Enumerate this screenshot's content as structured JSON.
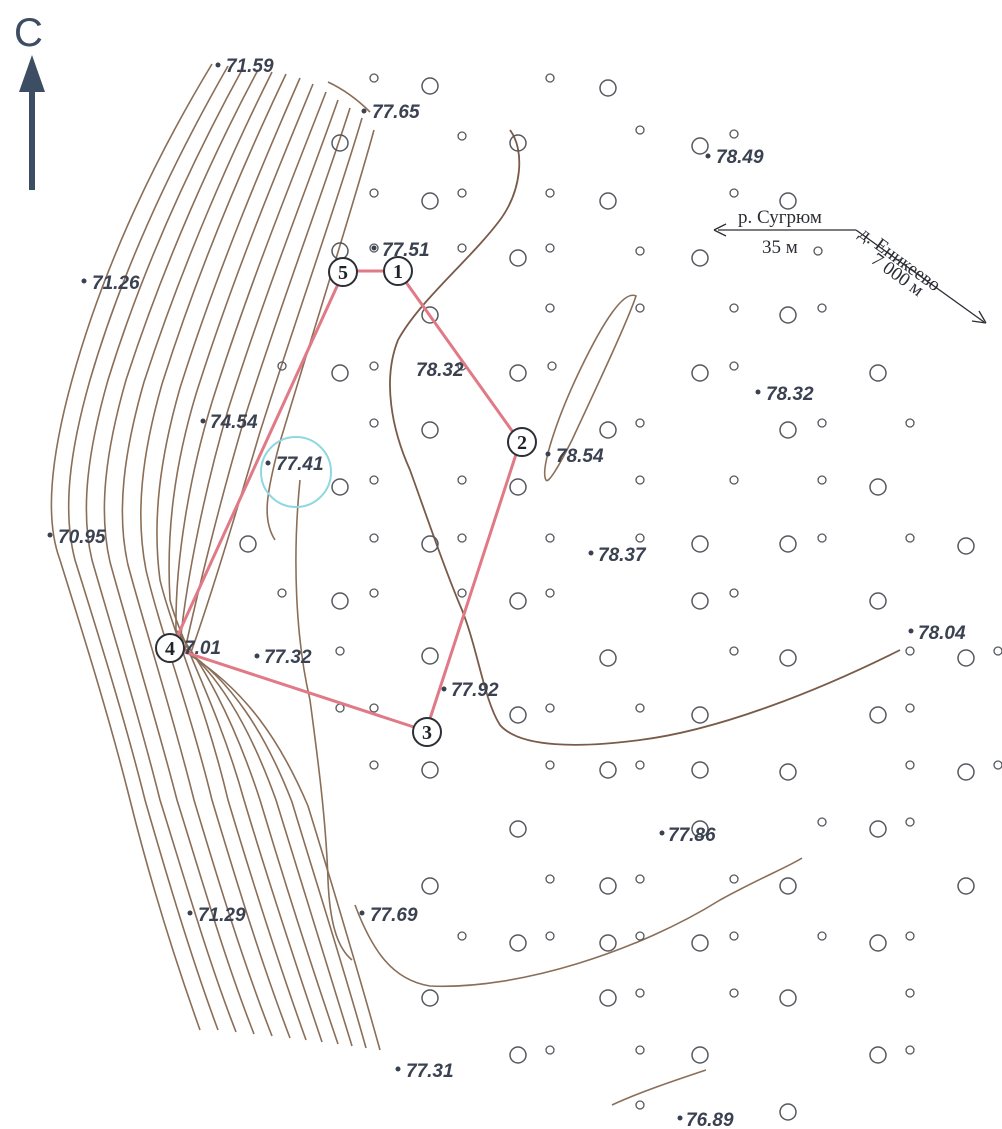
{
  "north": {
    "label": "С"
  },
  "elevations": [
    {
      "id": "e1",
      "text": "71.59"
    },
    {
      "id": "e2",
      "text": "77.65"
    },
    {
      "id": "e3",
      "text": "78.49"
    },
    {
      "id": "e4",
      "text": "77.51"
    },
    {
      "id": "e5",
      "text": "71.26"
    },
    {
      "id": "e6",
      "text": "78.32"
    },
    {
      "id": "e7",
      "text": "78.32"
    },
    {
      "id": "e8",
      "text": "74.54"
    },
    {
      "id": "e9",
      "text": "77.41"
    },
    {
      "id": "e10",
      "text": "78.54"
    },
    {
      "id": "e11",
      "text": "70.95"
    },
    {
      "id": "e12",
      "text": "78.37"
    },
    {
      "id": "e13",
      "text": "7.01"
    },
    {
      "id": "e14",
      "text": "77.32"
    },
    {
      "id": "e15",
      "text": "78.04"
    },
    {
      "id": "e16",
      "text": "77.92"
    },
    {
      "id": "e17",
      "text": "77.86"
    },
    {
      "id": "e18",
      "text": "71.29"
    },
    {
      "id": "e19",
      "text": "77.69"
    },
    {
      "id": "e20",
      "text": "77.31"
    },
    {
      "id": "e21",
      "text": "76.89"
    }
  ],
  "vertices": [
    {
      "id": "v1",
      "label": "1"
    },
    {
      "id": "v2",
      "label": "2"
    },
    {
      "id": "v3",
      "label": "3"
    },
    {
      "id": "v4",
      "label": "4"
    },
    {
      "id": "v5",
      "label": "5"
    }
  ],
  "directions": {
    "river": {
      "name": "р. Сугрюм",
      "distance": "35 м"
    },
    "village": {
      "name": "д. Еникеево",
      "distance": "7 000 м"
    }
  },
  "colors": {
    "boundary": "#e07a86",
    "contour": "#8a6e58",
    "text": "#3a4150",
    "highlight": "#8fd8e0"
  }
}
